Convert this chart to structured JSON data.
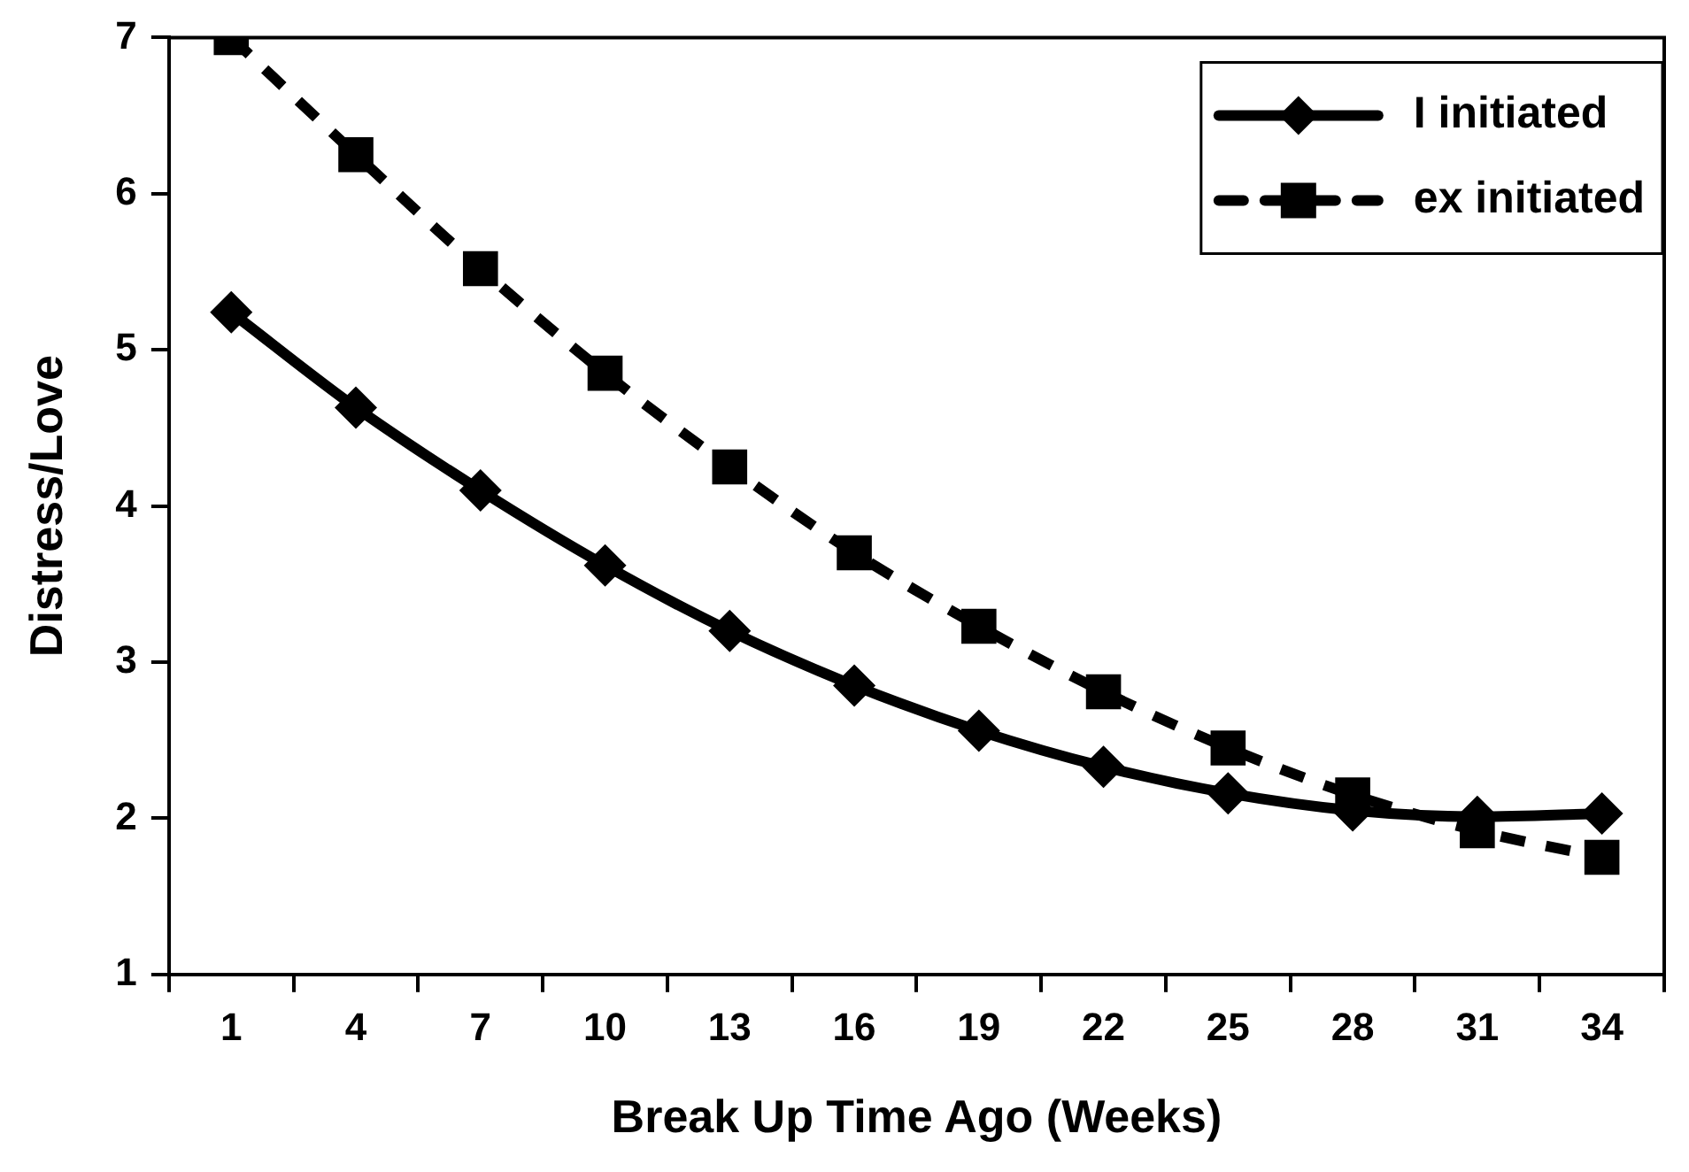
{
  "chart_data": {
    "type": "line",
    "xlabel": "Break Up Time Ago (Weeks)",
    "ylabel": "Distress/Love",
    "categories": [
      "1",
      "4",
      "7",
      "10",
      "13",
      "16",
      "19",
      "22",
      "25",
      "28",
      "31",
      "34"
    ],
    "series": [
      {
        "name": "I initiated",
        "color": "#000000",
        "marker": "diamond",
        "line_style": "solid",
        "values": [
          5.24,
          4.63,
          4.1,
          3.62,
          3.2,
          2.85,
          2.56,
          2.33,
          2.16,
          2.05,
          2.01,
          2.03
        ]
      },
      {
        "name": "ex initiated",
        "color": "#000000",
        "marker": "square",
        "line_style": "dashed",
        "values": [
          7.0,
          6.25,
          5.52,
          4.85,
          4.25,
          3.7,
          3.23,
          2.81,
          2.45,
          2.15,
          1.92,
          1.75
        ]
      }
    ],
    "ylim": [
      1,
      7
    ],
    "yticks": [
      1,
      2,
      3,
      4,
      5,
      6,
      7
    ],
    "grid": false,
    "legend": "top right"
  }
}
